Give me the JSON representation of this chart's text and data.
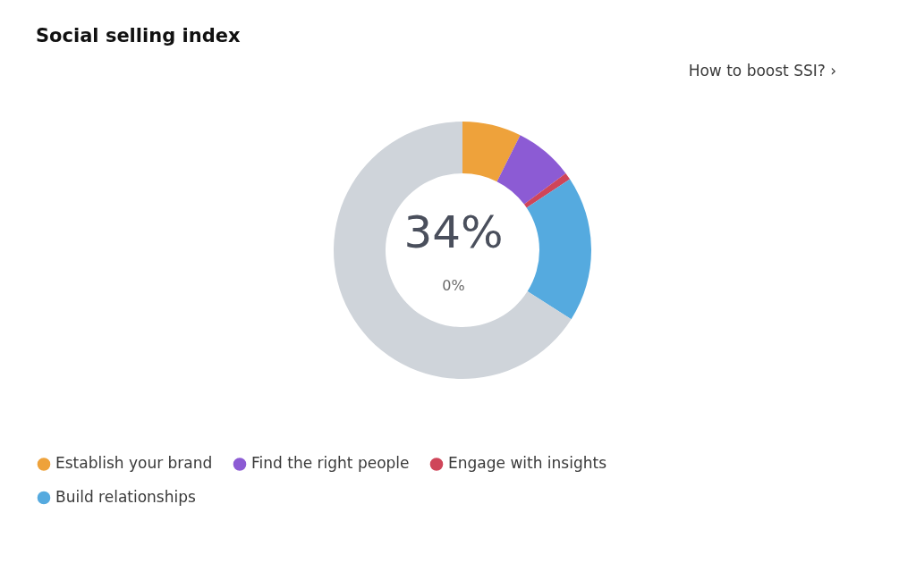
{
  "chart_data": {
    "type": "donut",
    "title": "Social selling index",
    "categories": [
      "Establish your brand",
      "Find the right people",
      "Engage with insights",
      "Build relationships",
      null
    ],
    "values": [
      7.4,
      7.4,
      0.9,
      18.3,
      66.0
    ],
    "colors": [
      "#eea23b",
      "#8c5bd4",
      "#cf4559",
      "#55aadf",
      "#cfd4da"
    ],
    "legend": "bottom",
    "annotations": [
      "How to boost SSI?  ›",
      "34%",
      "0%"
    ]
  }
}
